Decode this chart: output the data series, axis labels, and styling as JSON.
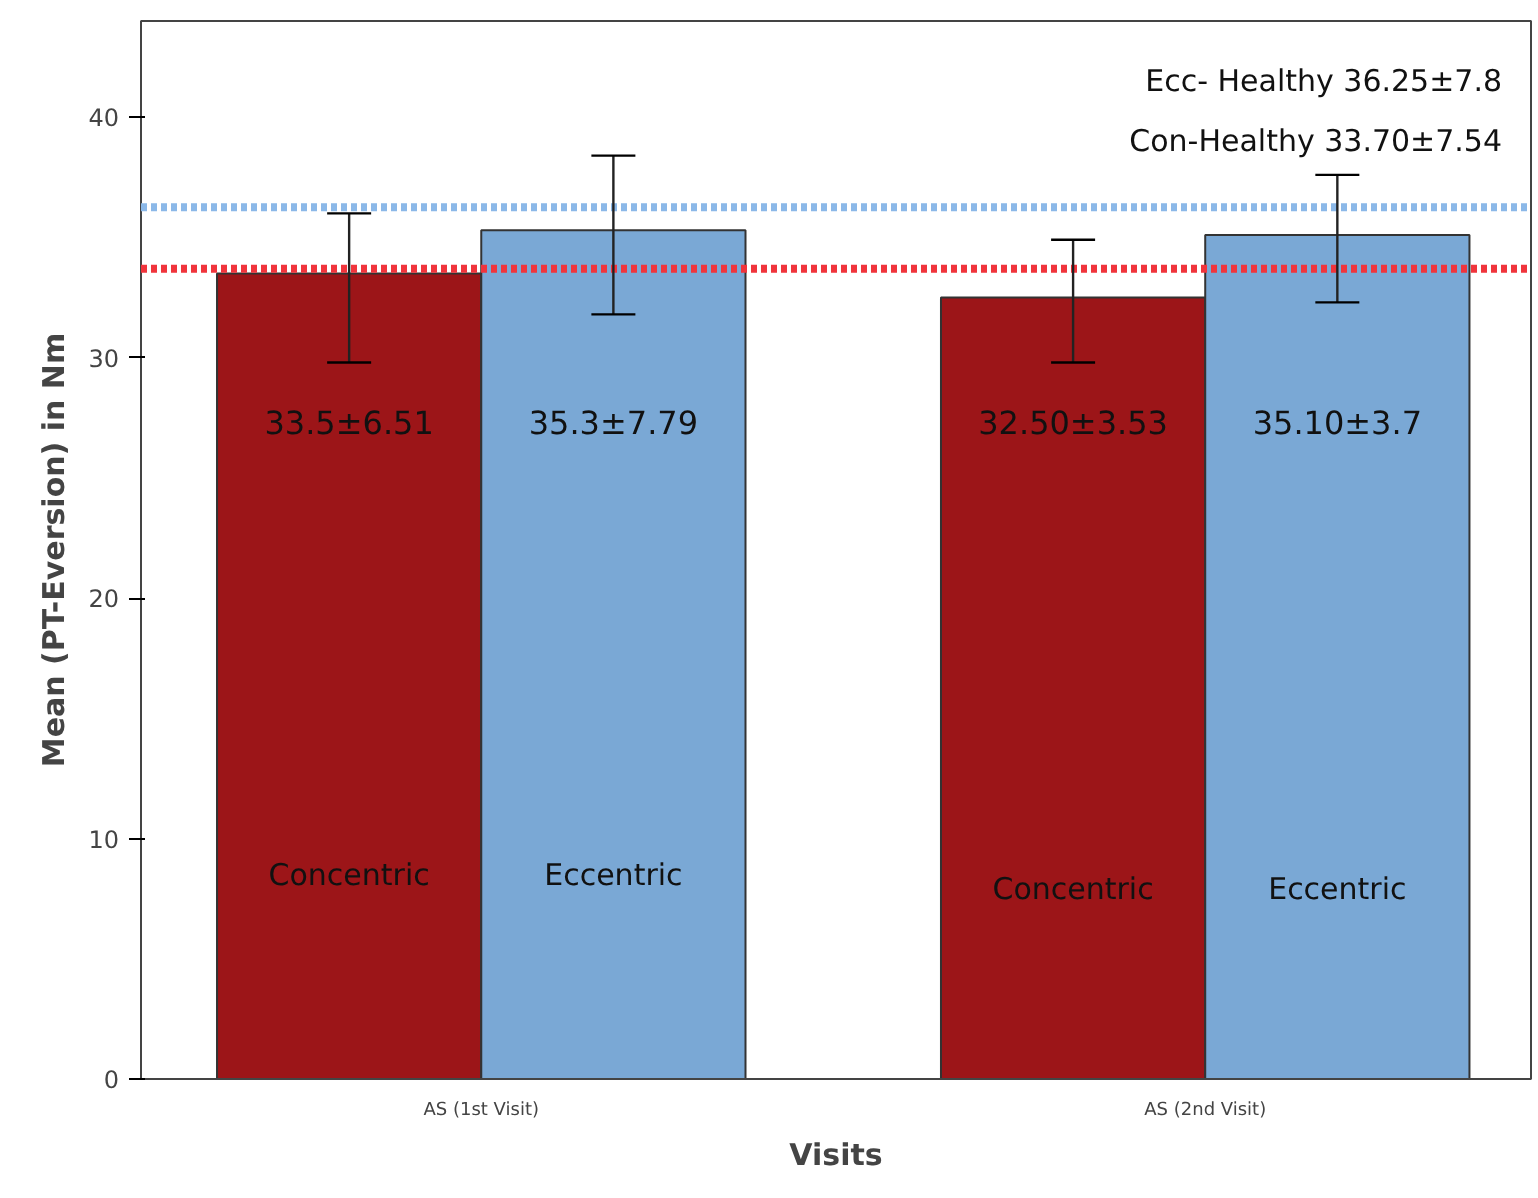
{
  "chart_data": {
    "type": "bar",
    "xlabel": "Visits",
    "ylabel": "Mean (PT-Eversion) in Nm",
    "categories": [
      "AS (1st Visit)",
      "AS (2nd Visit)"
    ],
    "series": [
      {
        "name": "Concentric",
        "color": "#9c1518",
        "values": [
          33.5,
          32.5
        ],
        "errors": [
          [
            29.8,
            36.0
          ],
          [
            29.8,
            34.9
          ]
        ],
        "value_labels": [
          "33.5±6.51",
          "32.50±3.53"
        ]
      },
      {
        "name": "Eccentric",
        "color": "#7aa8d5",
        "values": [
          35.3,
          35.1
        ],
        "errors": [
          [
            31.8,
            38.4
          ],
          [
            32.3,
            37.6
          ]
        ],
        "value_labels": [
          "35.3±7.79",
          "35.10±3.7"
        ]
      }
    ],
    "ylim": [
      0,
      44
    ],
    "yticks": [
      0,
      10,
      20,
      30,
      40
    ],
    "ref_lines": [
      {
        "axis": "y",
        "value": 36.25,
        "color": "#8bb8e8",
        "line_style": "dotted"
      },
      {
        "axis": "y",
        "value": 33.7,
        "color": "#f0343c",
        "line_style": "dotted"
      }
    ],
    "annotations": [
      "Ecc- Healthy 36.25±7.8",
      "Con-Healthy 33.70±7.54"
    ],
    "legend": false,
    "grid": false
  }
}
